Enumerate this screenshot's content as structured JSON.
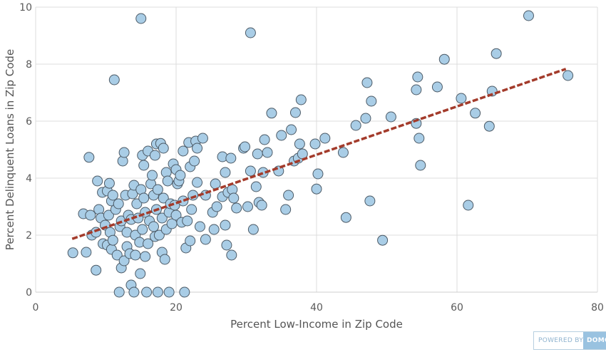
{
  "chart_data": {
    "type": "scatter",
    "xlabel": "Percent Low-Income in Zip Code",
    "ylabel": "Percent Delinquent Loans in Zip Code",
    "xlim": [
      0,
      80
    ],
    "ylim": [
      0,
      10
    ],
    "xticks": [
      0,
      20,
      40,
      60,
      80
    ],
    "yticks": [
      0,
      2,
      4,
      6,
      8,
      10
    ],
    "grid": true,
    "trendline": {
      "x": [
        5.2,
        75.5
      ],
      "y": [
        1.87,
        7.83
      ],
      "style": "dashed",
      "color": "#a33b2b"
    },
    "point_color": "#a9cde6",
    "points": [
      [
        5.3,
        1.38
      ],
      [
        7.2,
        1.4
      ],
      [
        6.8,
        2.75
      ],
      [
        7.8,
        2.7
      ],
      [
        7.6,
        4.73
      ],
      [
        8.0,
        2.0
      ],
      [
        8.6,
        2.1
      ],
      [
        8.8,
        3.9
      ],
      [
        8.6,
        0.77
      ],
      [
        9.0,
        2.9
      ],
      [
        9.3,
        2.6
      ],
      [
        9.5,
        3.5
      ],
      [
        9.6,
        1.7
      ],
      [
        9.9,
        2.35
      ],
      [
        10.2,
        1.65
      ],
      [
        10.2,
        3.55
      ],
      [
        10.4,
        2.7
      ],
      [
        10.5,
        3.82
      ],
      [
        10.6,
        2.1
      ],
      [
        10.8,
        3.2
      ],
      [
        10.8,
        1.5
      ],
      [
        11.0,
        1.82
      ],
      [
        11.0,
        3.4
      ],
      [
        11.2,
        7.45
      ],
      [
        11.4,
        2.9
      ],
      [
        11.6,
        1.3
      ],
      [
        11.8,
        3.1
      ],
      [
        11.9,
        0.0
      ],
      [
        12.0,
        2.3
      ],
      [
        12.2,
        0.85
      ],
      [
        12.2,
        2.5
      ],
      [
        12.4,
        4.6
      ],
      [
        12.6,
        4.9
      ],
      [
        12.6,
        1.1
      ],
      [
        12.8,
        3.4
      ],
      [
        13.0,
        2.1
      ],
      [
        13.0,
        1.6
      ],
      [
        13.2,
        2.7
      ],
      [
        13.4,
        1.35
      ],
      [
        13.6,
        2.55
      ],
      [
        13.6,
        0.25
      ],
      [
        13.8,
        3.45
      ],
      [
        14.0,
        0.0
      ],
      [
        14.0,
        3.75
      ],
      [
        14.2,
        2.0
      ],
      [
        14.2,
        1.3
      ],
      [
        14.4,
        3.1
      ],
      [
        14.6,
        2.6
      ],
      [
        14.8,
        1.75
      ],
      [
        14.9,
        0.65
      ],
      [
        15.0,
        9.6
      ],
      [
        15.0,
        3.6
      ],
      [
        15.2,
        4.8
      ],
      [
        15.2,
        2.2
      ],
      [
        15.4,
        4.45
      ],
      [
        15.4,
        3.3
      ],
      [
        15.6,
        2.8
      ],
      [
        15.6,
        1.25
      ],
      [
        15.8,
        0.0
      ],
      [
        16.0,
        1.7
      ],
      [
        16.0,
        4.95
      ],
      [
        16.2,
        2.5
      ],
      [
        16.4,
        3.8
      ],
      [
        16.6,
        4.1
      ],
      [
        16.8,
        2.3
      ],
      [
        16.8,
        3.4
      ],
      [
        17.0,
        1.95
      ],
      [
        17.0,
        4.8
      ],
      [
        17.2,
        2.9
      ],
      [
        17.2,
        5.2
      ],
      [
        17.4,
        0.0
      ],
      [
        17.4,
        3.6
      ],
      [
        17.6,
        2.0
      ],
      [
        17.8,
        5.22
      ],
      [
        18.0,
        2.6
      ],
      [
        18.0,
        1.4
      ],
      [
        18.2,
        3.3
      ],
      [
        18.2,
        5.05
      ],
      [
        18.4,
        1.15
      ],
      [
        18.6,
        2.2
      ],
      [
        18.6,
        4.2
      ],
      [
        18.8,
        3.9
      ],
      [
        19.0,
        0.0
      ],
      [
        19.0,
        2.8
      ],
      [
        19.2,
        3.1
      ],
      [
        19.4,
        2.4
      ],
      [
        19.6,
        4.5
      ],
      [
        19.8,
        3.05
      ],
      [
        20.0,
        4.3
      ],
      [
        20.0,
        2.7
      ],
      [
        20.2,
        3.8
      ],
      [
        20.4,
        3.9
      ],
      [
        20.6,
        4.1
      ],
      [
        20.8,
        2.45
      ],
      [
        21.0,
        4.95
      ],
      [
        21.0,
        3.2
      ],
      [
        21.2,
        0.0
      ],
      [
        21.4,
        1.55
      ],
      [
        21.6,
        2.5
      ],
      [
        21.8,
        5.25
      ],
      [
        22.0,
        4.4
      ],
      [
        22.0,
        1.8
      ],
      [
        22.2,
        2.9
      ],
      [
        22.4,
        3.4
      ],
      [
        22.6,
        4.6
      ],
      [
        22.8,
        5.3
      ],
      [
        23.0,
        3.85
      ],
      [
        23.0,
        5.05
      ],
      [
        23.4,
        2.3
      ],
      [
        23.8,
        5.4
      ],
      [
        24.2,
        1.85
      ],
      [
        24.2,
        3.4
      ],
      [
        25.2,
        2.8
      ],
      [
        25.4,
        2.2
      ],
      [
        25.6,
        3.8
      ],
      [
        25.8,
        3.0
      ],
      [
        26.6,
        4.75
      ],
      [
        26.6,
        3.35
      ],
      [
        27.0,
        2.35
      ],
      [
        27.0,
        4.2
      ],
      [
        27.2,
        1.65
      ],
      [
        27.4,
        3.5
      ],
      [
        27.8,
        4.7
      ],
      [
        27.9,
        1.3
      ],
      [
        28.0,
        3.6
      ],
      [
        28.2,
        3.3
      ],
      [
        28.6,
        2.95
      ],
      [
        29.6,
        5.05
      ],
      [
        29.8,
        5.1
      ],
      [
        30.2,
        3.0
      ],
      [
        30.6,
        9.1
      ],
      [
        30.6,
        4.25
      ],
      [
        31.0,
        2.2
      ],
      [
        31.4,
        3.7
      ],
      [
        31.6,
        4.85
      ],
      [
        31.8,
        3.15
      ],
      [
        32.2,
        3.05
      ],
      [
        32.4,
        4.2
      ],
      [
        32.6,
        5.35
      ],
      [
        33.0,
        4.9
      ],
      [
        33.6,
        6.28
      ],
      [
        34.6,
        4.25
      ],
      [
        35.0,
        5.5
      ],
      [
        35.6,
        2.9
      ],
      [
        36.0,
        3.4
      ],
      [
        36.4,
        5.7
      ],
      [
        36.8,
        4.6
      ],
      [
        37.0,
        6.3
      ],
      [
        37.4,
        4.7
      ],
      [
        37.6,
        5.2
      ],
      [
        37.8,
        6.75
      ],
      [
        38.0,
        4.85
      ],
      [
        39.8,
        5.2
      ],
      [
        40.0,
        3.62
      ],
      [
        40.2,
        4.15
      ],
      [
        41.2,
        5.4
      ],
      [
        43.8,
        4.9
      ],
      [
        44.2,
        2.62
      ],
      [
        45.6,
        5.85
      ],
      [
        47.0,
        6.1
      ],
      [
        47.2,
        7.35
      ],
      [
        47.6,
        3.2
      ],
      [
        47.8,
        6.7
      ],
      [
        49.4,
        1.82
      ],
      [
        50.6,
        6.15
      ],
      [
        54.2,
        5.92
      ],
      [
        54.2,
        7.1
      ],
      [
        54.4,
        7.55
      ],
      [
        54.6,
        5.4
      ],
      [
        54.8,
        4.45
      ],
      [
        57.2,
        7.2
      ],
      [
        58.2,
        8.17
      ],
      [
        60.6,
        6.8
      ],
      [
        61.6,
        3.05
      ],
      [
        62.6,
        6.28
      ],
      [
        64.6,
        5.82
      ],
      [
        65.0,
        7.05
      ],
      [
        65.6,
        8.37
      ],
      [
        70.2,
        9.7
      ],
      [
        75.8,
        7.6
      ]
    ]
  },
  "badge": {
    "text": "POWERED BY",
    "logo": "DOMO"
  }
}
